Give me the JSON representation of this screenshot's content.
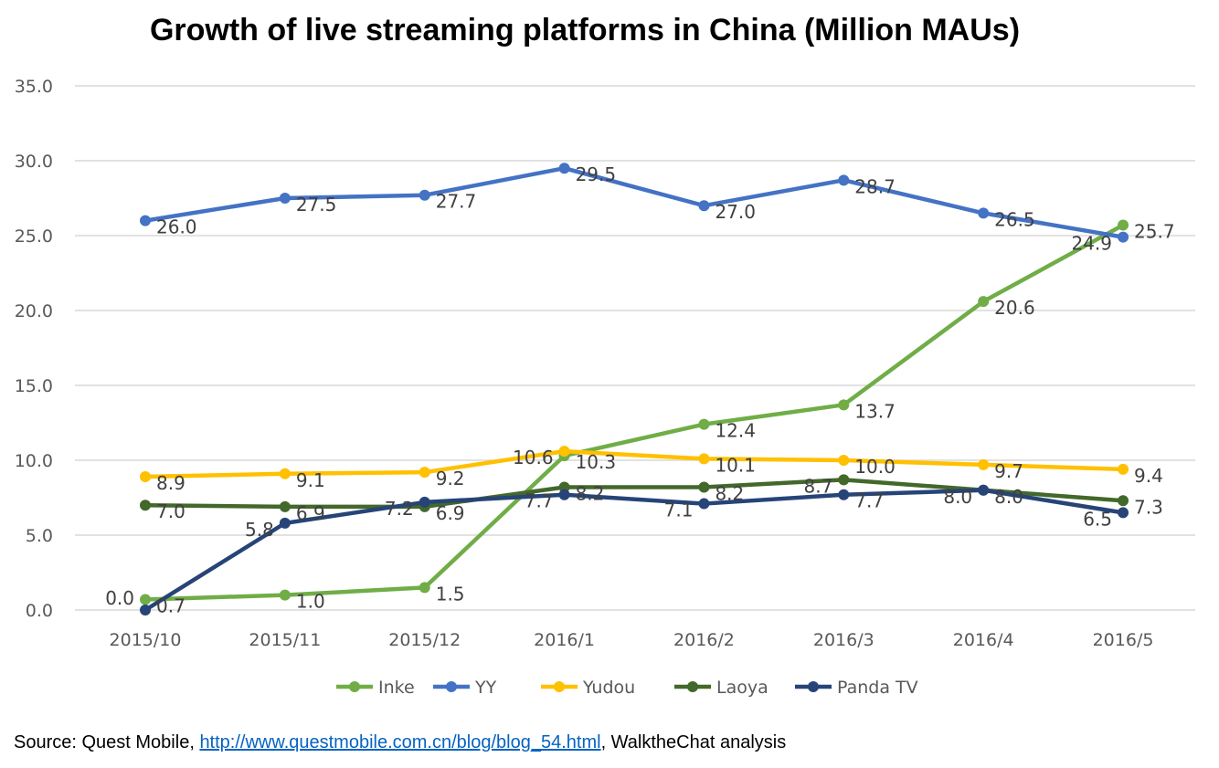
{
  "chart_data": {
    "type": "line",
    "title": "Growth of live streaming platforms in China (Million MAUs)",
    "xlabel": "",
    "ylabel": "",
    "categories": [
      "2015/10",
      "2015/11",
      "2015/12",
      "2016/1",
      "2016/2",
      "2016/3",
      "2016/4",
      "2016/5"
    ],
    "ylim": [
      0,
      35
    ],
    "yticks": [
      "0.0",
      "5.0",
      "10.0",
      "15.0",
      "20.0",
      "25.0",
      "30.0",
      "35.0"
    ],
    "grid": true,
    "legend": "bottom",
    "series": [
      {
        "name": "Inke",
        "color": "#70ad47",
        "values": [
          0.7,
          1.0,
          1.5,
          10.3,
          12.4,
          13.7,
          20.6,
          25.7
        ]
      },
      {
        "name": "YY",
        "color": "#4472c4",
        "values": [
          26.0,
          27.5,
          27.7,
          29.5,
          27.0,
          28.7,
          26.5,
          24.9
        ]
      },
      {
        "name": "Yudou",
        "color": "#ffc000",
        "values": [
          8.9,
          9.1,
          9.2,
          10.6,
          10.1,
          10.0,
          9.7,
          9.4
        ]
      },
      {
        "name": "Laoya",
        "color": "#43682b",
        "values": [
          7.0,
          6.9,
          6.9,
          8.2,
          8.2,
          8.7,
          8.0,
          7.3
        ]
      },
      {
        "name": "Panda TV",
        "color": "#264478",
        "values": [
          0.0,
          5.8,
          7.2,
          7.7,
          7.1,
          7.7,
          8.0,
          6.5
        ]
      }
    ]
  },
  "source": {
    "prefix": "Source: Quest Mobile, ",
    "link": "http://www.questmobile.com.cn/blog/blog_54.html",
    "suffix": ", WalktheChat analysis"
  }
}
